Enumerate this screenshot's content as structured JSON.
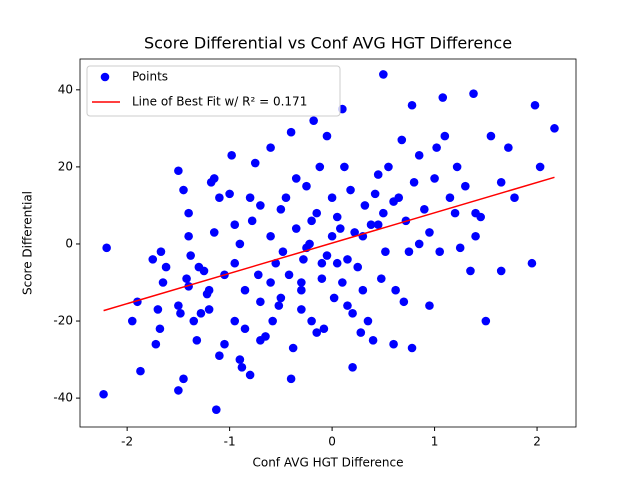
{
  "chart_data": {
    "type": "scatter",
    "title": "Score Differential vs Conf AVG HGT Difference",
    "x_label": "Conf AVG HGT Difference",
    "y_label": "Score Differential",
    "xlim": [
      -2.46,
      2.38
    ],
    "ylim": [
      -47.5,
      48
    ],
    "xticks": [
      -2,
      -1,
      0,
      1,
      2
    ],
    "yticks": [
      -40,
      -20,
      0,
      20,
      40
    ],
    "legend": "upper left",
    "series": [
      {
        "name": "Points",
        "type": "scatter",
        "color": "#0000ff",
        "x": [
          -2.23,
          -2.2,
          -1.95,
          -1.87,
          -1.9,
          -1.75,
          -1.72,
          -1.7,
          -1.68,
          -1.67,
          -1.65,
          -1.62,
          -1.5,
          -1.5,
          -1.48,
          -1.5,
          -1.45,
          -1.45,
          -1.42,
          -1.4,
          -1.4,
          -1.38,
          -1.4,
          -1.35,
          -1.32,
          -1.3,
          -1.28,
          -1.25,
          -1.22,
          -1.2,
          -1.18,
          -1.15,
          -1.13,
          -1.1,
          -1.15,
          -1.1,
          -1.05,
          -1.05,
          -1.0,
          -0.98,
          -0.95,
          -0.95,
          -0.95,
          -0.9,
          -0.88,
          -0.85,
          -0.85,
          -0.8,
          -0.8,
          -0.78,
          -0.75,
          -0.72,
          -0.7,
          -0.7,
          -0.65,
          -0.6,
          -0.6,
          -0.6,
          -0.58,
          -0.55,
          -0.52,
          -0.5,
          -0.48,
          -0.45,
          -0.42,
          -0.4,
          -0.4,
          -0.38,
          -0.35,
          -0.35,
          -0.3,
          -0.3,
          -0.28,
          -0.25,
          -0.22,
          -0.2,
          -0.2,
          -0.18,
          -0.15,
          -0.12,
          -0.1,
          -0.1,
          -0.08,
          -0.05,
          -0.05,
          0,
          0,
          0.02,
          0.05,
          0.08,
          0.1,
          0.1,
          0.12,
          0.15,
          0.18,
          0.2,
          0.22,
          0.25,
          0.28,
          0.3,
          0.32,
          0.35,
          0.38,
          0.4,
          0.42,
          0.45,
          0.48,
          0.5,
          0.5,
          0.52,
          0.55,
          0.6,
          0.62,
          0.65,
          0.68,
          0.7,
          0.72,
          0.75,
          0.78,
          0.78,
          0.8,
          0.85,
          0.9,
          0.95,
          0.95,
          1.0,
          1.02,
          1.05,
          1.08,
          1.1,
          1.15,
          1.2,
          1.22,
          1.25,
          1.3,
          1.35,
          1.38,
          1.4,
          1.45,
          1.5,
          1.55,
          1.65,
          1.65,
          1.72,
          1.78,
          1.95,
          1.98,
          2.03,
          2.17,
          1.4,
          0.85,
          -0.3,
          0.2,
          -0.7,
          -0.5,
          -0.25,
          0.05,
          0.3,
          0.6,
          -0.9,
          -1.2,
          0.45,
          0.15,
          -0.15
        ],
        "values": [
          -39,
          -1,
          -20,
          -33,
          -15,
          -4,
          -26,
          -17,
          -22,
          -2,
          -10,
          -6,
          19,
          -16,
          -18,
          -38,
          -35,
          14,
          -9,
          -11,
          2,
          -3,
          8,
          -20,
          -25,
          -6,
          -18,
          -7,
          -13,
          -17,
          16,
          17,
          -43,
          -29,
          3,
          12,
          -26,
          -8,
          13,
          23,
          -5,
          5,
          -20,
          -30,
          -32,
          -12,
          -22,
          -34,
          12,
          6,
          21,
          -8,
          -15,
          -25,
          -24,
          -10,
          2,
          25,
          -20,
          -5,
          -16,
          9,
          -2,
          12,
          -8,
          29,
          -35,
          -27,
          4,
          17,
          -12,
          -17,
          -4,
          15,
          0,
          -20,
          6,
          32,
          -23,
          20,
          -9,
          -5,
          -22,
          28,
          -3,
          12,
          2,
          -14,
          -5,
          4,
          35,
          -10,
          20,
          -16,
          14,
          -32,
          3,
          -6,
          -23,
          -12,
          10,
          -20,
          5,
          -25,
          13,
          18,
          -9,
          44,
          8,
          -2,
          20,
          -26,
          -12,
          12,
          27,
          -15,
          6,
          -2,
          36,
          -27,
          16,
          23,
          9,
          -16,
          3,
          17,
          25,
          -2,
          38,
          28,
          12,
          8,
          20,
          -1,
          15,
          -7,
          39,
          2,
          7,
          -20,
          28,
          -7,
          16,
          25,
          12,
          -5,
          36,
          20,
          30,
          8,
          0,
          -10,
          -18,
          10,
          -14,
          -1,
          7,
          2,
          11,
          0,
          -12,
          5,
          -4,
          8
        ]
      },
      {
        "name": "Line of Best Fit w/ R² = 0.171",
        "type": "line",
        "color": "#ff0000",
        "x": [
          -2.23,
          2.17
        ],
        "values": [
          -17.3,
          17.3
        ]
      }
    ]
  }
}
